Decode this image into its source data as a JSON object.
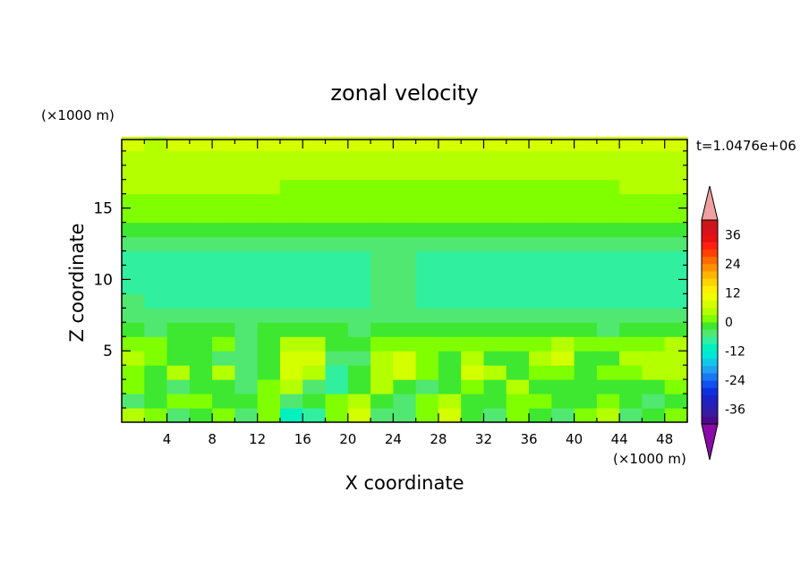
{
  "chart_data": {
    "type": "heatmap",
    "title": "zonal velocity",
    "time_label": "t=1.0476e+06",
    "xlabel": "X coordinate",
    "ylabel": "Z coordinate",
    "x_units": "(×1000 m)",
    "y_units": "(×1000 m)",
    "xlim": [
      0,
      50
    ],
    "ylim": [
      0,
      19.8
    ],
    "x_ticks": [
      "4",
      "8",
      "12",
      "16",
      "20",
      "24",
      "28",
      "32",
      "36",
      "40",
      "44",
      "48"
    ],
    "y_ticks": [
      "5",
      "10",
      "15"
    ],
    "colorbar": {
      "levels": [
        -42,
        -39,
        -36,
        -33,
        -30,
        -27,
        -24,
        -21,
        -18,
        -15,
        -12,
        -9,
        -6,
        -3,
        0,
        3,
        6,
        9,
        12,
        15,
        18,
        21,
        24,
        27,
        30,
        33,
        36,
        39,
        42
      ],
      "colors": [
        "#4b0a8c",
        "#3a1aa0",
        "#2a1fb3",
        "#1a22c8",
        "#1030e0",
        "#1050f0",
        "#1a78f2",
        "#20a0f0",
        "#10c8e8",
        "#00e6d8",
        "#00f0c0",
        "#30f0a0",
        "#50e870",
        "#3ee830",
        "#80ff00",
        "#b4ff00",
        "#d4ff00",
        "#f0ff00",
        "#fff000",
        "#ffd400",
        "#ffb400",
        "#ff9000",
        "#ff6a00",
        "#ff4000",
        "#ff2010",
        "#e81010",
        "#d81020",
        "#c81818"
      ],
      "under_color": "#8a0aa8",
      "over_color": "#f0a0a0",
      "tick_labels": [
        "36",
        "24",
        "12",
        "0",
        "-12",
        "-24",
        "-36"
      ]
    },
    "z_rows": [
      0.5,
      1.5,
      2.5,
      3.5,
      4.5,
      5.5,
      6.5,
      7.5,
      8.5,
      9.5,
      10.5,
      11.5,
      12.5,
      13.5,
      14.5,
      15.5,
      16.5,
      17.5,
      18.5,
      19.5
    ],
    "x_cols": [
      1,
      3,
      5,
      7,
      9,
      11,
      13,
      15,
      17,
      19,
      21,
      23,
      25,
      27,
      29,
      31,
      33,
      35,
      37,
      39,
      41,
      43,
      45,
      47,
      49
    ],
    "values": [
      [
        3,
        2,
        -4,
        -3,
        2,
        -4,
        1,
        -12,
        -9,
        2,
        8,
        -6,
        -4,
        2,
        6,
        -3,
        -5,
        2,
        -3,
        -4,
        1,
        4,
        -4,
        -3,
        1
      ],
      [
        -4,
        -3,
        0,
        2,
        -3,
        -2,
        0,
        -6,
        -3,
        0,
        3,
        -3,
        -4,
        0,
        4,
        -2,
        -3,
        0,
        1,
        -3,
        -2,
        0,
        -3,
        -4,
        -3
      ],
      [
        1,
        -3,
        -4,
        -1,
        -3,
        -5,
        2,
        3,
        -5,
        -7,
        -3,
        3,
        -3,
        -5,
        -2,
        0,
        -1,
        3,
        -1,
        -3,
        -3,
        -2,
        -3,
        -1,
        1
      ],
      [
        2,
        -1,
        4,
        -2,
        3,
        -4,
        -2,
        6,
        5,
        -8,
        -3,
        5,
        6,
        0,
        -2,
        6,
        3,
        -2,
        0,
        2,
        -1,
        2,
        0,
        3,
        4
      ],
      [
        4,
        2,
        -2,
        -3,
        -4,
        -6,
        -1,
        7,
        8,
        -5,
        -4,
        4,
        6,
        2,
        -1,
        3,
        -1,
        -1,
        5,
        7,
        -1,
        -2,
        3,
        5,
        5
      ],
      [
        2,
        1,
        -1,
        -2,
        1,
        -5,
        -3,
        3,
        4,
        -3,
        -3,
        1,
        2,
        1,
        2,
        0,
        0,
        1,
        2,
        4,
        0,
        1,
        2,
        2,
        3
      ],
      [
        -3,
        -4,
        -3,
        -3,
        -3,
        -4,
        -3,
        -3,
        -2,
        -3,
        -4,
        -3,
        -3,
        -3,
        -3,
        -3,
        -2,
        -3,
        -3,
        -3,
        -3,
        -4,
        -3,
        -3,
        -3
      ],
      [
        -5,
        -5,
        -6,
        -6,
        -6,
        -6,
        -6,
        -5,
        -6,
        -6,
        -6,
        -5,
        -6,
        -6,
        -6,
        -5,
        -5,
        -6,
        -6,
        -6,
        -6,
        -6,
        -6,
        -5,
        -4
      ],
      [
        -6,
        -7,
        -7,
        -7,
        -8,
        -8,
        -7,
        -7,
        -7,
        -7,
        -7,
        -5,
        -6,
        -7,
        -8,
        -8,
        -8,
        -8,
        -8,
        -8,
        -8,
        -7,
        -7,
        -7,
        -7
      ],
      [
        -7,
        -8,
        -8,
        -8,
        -8,
        -8,
        -8,
        -8,
        -8,
        -8,
        -8,
        -5,
        -5,
        -7,
        -8,
        -8,
        -8,
        -8,
        -8,
        -8,
        -8,
        -8,
        -8,
        -8,
        -8
      ],
      [
        -8,
        -8,
        -8,
        -8,
        -8,
        -8,
        -8,
        -8,
        -8,
        -8,
        -8,
        -5,
        -6,
        -8,
        -8,
        -8,
        -8,
        -8,
        -8,
        -8,
        -8,
        -8,
        -8,
        -8,
        -8
      ],
      [
        -7,
        -7,
        -8,
        -8,
        -8,
        -8,
        -8,
        -8,
        -8,
        -8,
        -8,
        -6,
        -6,
        -7,
        -8,
        -8,
        -8,
        -8,
        -8,
        -8,
        -8,
        -8,
        -8,
        -7,
        -7
      ],
      [
        -6,
        -6,
        -6,
        -6,
        -6,
        -6,
        -6,
        -6,
        -6,
        -6,
        -6,
        -5,
        -5,
        -5,
        -5,
        -6,
        -6,
        -6,
        -6,
        -6,
        -6,
        -6,
        -6,
        -6,
        -6
      ],
      [
        -1,
        -1,
        -1,
        -1,
        -1,
        -1,
        -1,
        -1,
        -1,
        -1,
        -1,
        -2,
        -3,
        -3,
        -3,
        -2,
        -1,
        -1,
        -1,
        -1,
        -1,
        -1,
        -1,
        -1,
        -1
      ],
      [
        1,
        1,
        1,
        1,
        1,
        1,
        1,
        1,
        1,
        1,
        1,
        1,
        1,
        1,
        1,
        1,
        1,
        1,
        1,
        1,
        1,
        1,
        1,
        1,
        1
      ],
      [
        2,
        2,
        2,
        2,
        2,
        2,
        2,
        2,
        2,
        2,
        2,
        2,
        2,
        2,
        2,
        2,
        2,
        2,
        2,
        2,
        2,
        2,
        2,
        2,
        2
      ],
      [
        4,
        4,
        4,
        4,
        4,
        4,
        4,
        2,
        2,
        2,
        2,
        2,
        2,
        2,
        2,
        2,
        2,
        2,
        2,
        2,
        2,
        2,
        4,
        4,
        4
      ],
      [
        4,
        4,
        4,
        4,
        4,
        4,
        4,
        4,
        4,
        4,
        4,
        4,
        4,
        4,
        4,
        4,
        4,
        4,
        4,
        4,
        4,
        4,
        4,
        4,
        4
      ],
      [
        4,
        4,
        4,
        4,
        4,
        4,
        4,
        4,
        4,
        4,
        4,
        4,
        4,
        4,
        4,
        4,
        4,
        4,
        4,
        4,
        4,
        4,
        4,
        4,
        4
      ],
      [
        7,
        5,
        6,
        6,
        6,
        6,
        6,
        6,
        6,
        6,
        6,
        6,
        6,
        6,
        6,
        6,
        6,
        6,
        6,
        6,
        6,
        6,
        6,
        6,
        6
      ]
    ]
  }
}
